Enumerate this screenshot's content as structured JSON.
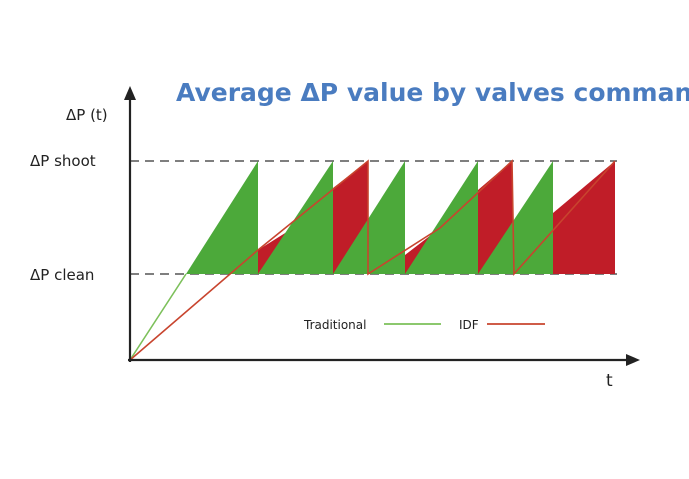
{
  "title": "Average ΔP value by valves command",
  "y_axis_label": "ΔP (t)",
  "x_axis_label": "t",
  "levels": {
    "shoot_label": "ΔP shoot",
    "clean_label": "ΔP clean"
  },
  "legend": {
    "traditional_label": "Traditional",
    "idf_label": "IDF"
  },
  "colors": {
    "traditional": "#4ca93a",
    "idf": "#c01d28",
    "traditional_line": "#7cc05a",
    "idf_line": "#c8442e",
    "title": "#4a7cc0",
    "axis": "#222222",
    "dashes": "#555555"
  }
}
